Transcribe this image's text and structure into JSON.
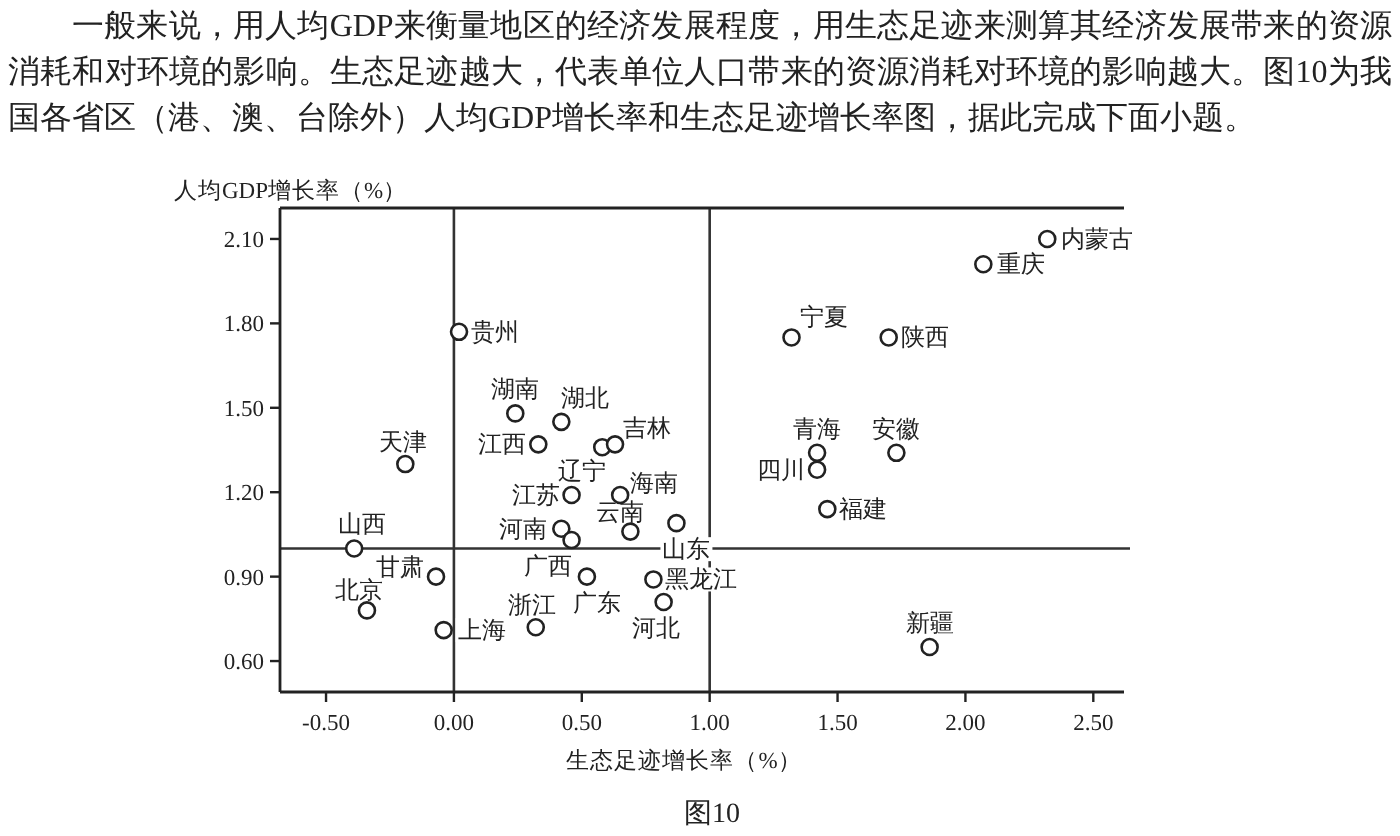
{
  "chart_data": {
    "type": "scatter",
    "xlabel": "生态足迹增长率（%）",
    "ylabel": "人均GDP增长率（%）",
    "x": [
      2.32,
      2.07,
      1.32,
      1.7,
      1.42,
      1.42,
      1.73,
      1.46,
      1.86,
      0.02,
      0.24,
      0.42,
      0.33,
      0.58,
      0.63,
      -0.19,
      0.46,
      0.65,
      0.69,
      0.87,
      0.42,
      0.46,
      0.52,
      0.78,
      -0.39,
      -0.07,
      -0.34,
      -0.04,
      0.32,
      0.82
    ],
    "values": [
      2.1,
      2.01,
      1.75,
      1.75,
      1.34,
      1.28,
      1.34,
      1.14,
      0.65,
      1.77,
      1.48,
      1.45,
      1.37,
      1.36,
      1.37,
      1.3,
      1.19,
      1.19,
      1.06,
      1.09,
      1.07,
      1.03,
      0.9,
      0.89,
      1.0,
      0.9,
      0.78,
      0.71,
      0.72,
      0.81
    ],
    "color": "#222222",
    "marker": "circle",
    "xlim": [
      -0.68,
      2.62
    ],
    "ylim": [
      0.49,
      2.21
    ],
    "xticks": [
      {
        "value": -0.5,
        "label": "-0.50"
      },
      {
        "value": 0,
        "label": "0.00"
      },
      {
        "value": 0.5,
        "label": "0.50"
      },
      {
        "value": 1,
        "label": "1.00"
      },
      {
        "value": 1.5,
        "label": "1.50"
      },
      {
        "value": 2,
        "label": "2.00"
      },
      {
        "value": 2.5,
        "label": "2.50"
      }
    ],
    "yticks": [
      {
        "value": 0.6,
        "label": "0.60"
      },
      {
        "value": 0.9,
        "label": "0.90"
      },
      {
        "value": 1.2,
        "label": "1.20"
      },
      {
        "value": 1.5,
        "label": "1.50"
      },
      {
        "value": 1.8,
        "label": "1.80"
      },
      {
        "value": 2.1,
        "label": "2.10"
      }
    ],
    "ref_lines": [
      {
        "axis": "x",
        "value": 0,
        "color": "#333333"
      },
      {
        "axis": "x",
        "value": 1,
        "color": "#333333"
      },
      {
        "axis": "y",
        "value": 1,
        "color": "#333333"
      }
    ],
    "annotations": [
      "一般来说，用人均GDP来衡量地区的经济发展程度，用生态足迹来测算其经济发展带来的资源消耗和对环境的影响。生态足迹越大，代表单位人口带来的资源消耗对环境的影响越大。图10为我国各省区（港、澳、台除外）人均GDP增长率和生态足迹增长率图，据此完成下面小题。",
      "图10",
      {
        "text": "内蒙古",
        "x": 2.32,
        "y": 2.1
      },
      {
        "text": "重庆",
        "x": 2.07,
        "y": 2.01
      },
      {
        "text": "宁夏",
        "x": 1.32,
        "y": 1.75
      },
      {
        "text": "陕西",
        "x": 1.7,
        "y": 1.75
      },
      {
        "text": "青海",
        "x": 1.42,
        "y": 1.34
      },
      {
        "text": "四川",
        "x": 1.42,
        "y": 1.28
      },
      {
        "text": "安徽",
        "x": 1.73,
        "y": 1.34
      },
      {
        "text": "福建",
        "x": 1.46,
        "y": 1.14
      },
      {
        "text": "新疆",
        "x": 1.86,
        "y": 0.65
      },
      {
        "text": "贵州",
        "x": 0.02,
        "y": 1.77
      },
      {
        "text": "湖南",
        "x": 0.24,
        "y": 1.48
      },
      {
        "text": "湖北",
        "x": 0.42,
        "y": 1.45
      },
      {
        "text": "江西",
        "x": 0.33,
        "y": 1.37
      },
      {
        "text": "辽宁",
        "x": 0.58,
        "y": 1.36
      },
      {
        "text": "吉林",
        "x": 0.63,
        "y": 1.37
      },
      {
        "text": "天津",
        "x": -0.19,
        "y": 1.3
      },
      {
        "text": "江苏",
        "x": 0.46,
        "y": 1.19
      },
      {
        "text": "海南",
        "x": 0.65,
        "y": 1.19
      },
      {
        "text": "云南",
        "x": 0.69,
        "y": 1.06
      },
      {
        "text": "山东",
        "x": 0.87,
        "y": 1.09
      },
      {
        "text": "河南",
        "x": 0.42,
        "y": 1.07
      },
      {
        "text": "广西",
        "x": 0.46,
        "y": 1.03
      },
      {
        "text": "广东",
        "x": 0.52,
        "y": 0.9
      },
      {
        "text": "黑龙江",
        "x": 0.78,
        "y": 0.89
      },
      {
        "text": "山西",
        "x": -0.39,
        "y": 1.0
      },
      {
        "text": "甘肃",
        "x": -0.07,
        "y": 0.9
      },
      {
        "text": "北京",
        "x": -0.34,
        "y": 0.78
      },
      {
        "text": "上海",
        "x": -0.04,
        "y": 0.71
      },
      {
        "text": "浙江",
        "x": 0.32,
        "y": 0.72
      },
      {
        "text": "河北",
        "x": 0.82,
        "y": 0.81
      }
    ]
  }
}
